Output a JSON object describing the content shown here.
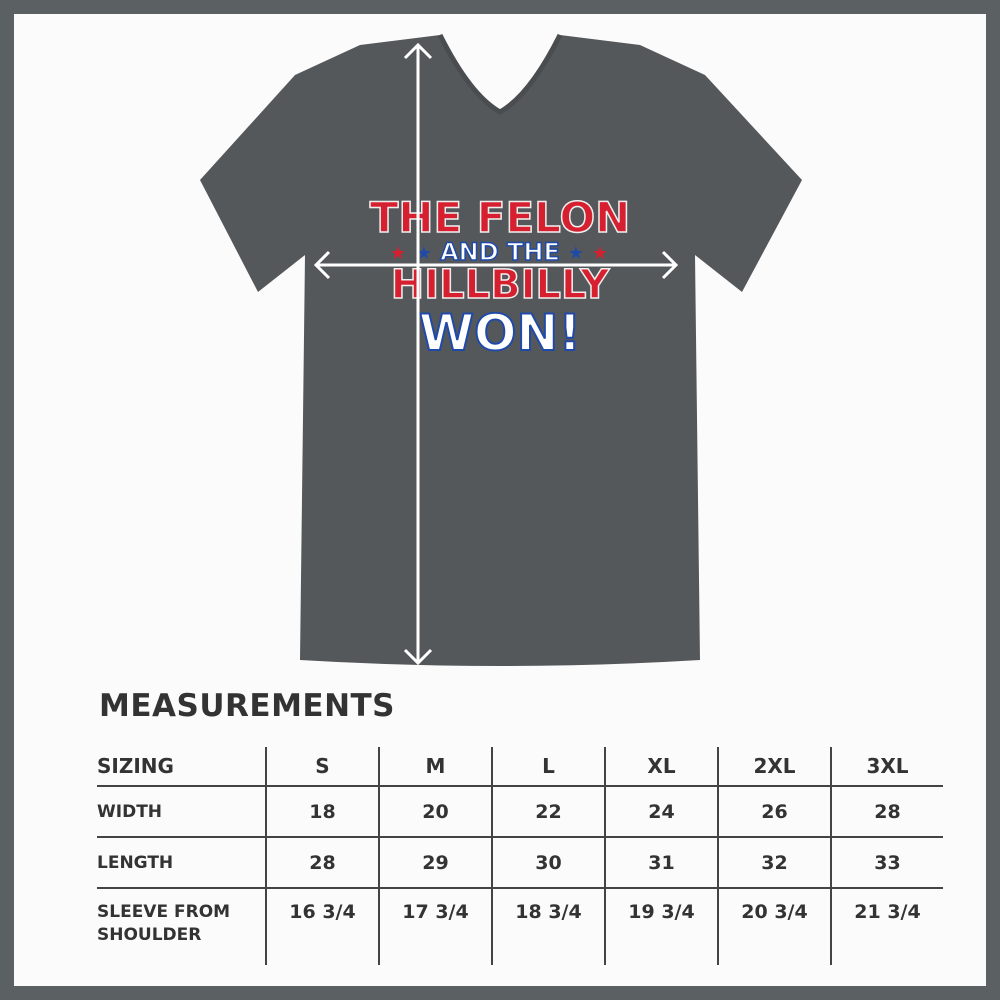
{
  "shirt": {
    "color": "#55585b",
    "print_lines": [
      "THE FELON",
      "AND THE",
      "HILLBILLY",
      "WON!"
    ],
    "print_colors": {
      "red": "#d6202f",
      "blue": "#1f4aa8",
      "white": "#ffffff"
    }
  },
  "measurements": {
    "title": "MEASUREMENTS",
    "header": {
      "label": "SIZING",
      "sizes": [
        "S",
        "M",
        "L",
        "XL",
        "2XL",
        "3XL"
      ]
    },
    "rows": [
      {
        "label": "WIDTH",
        "values": [
          "18",
          "20",
          "22",
          "24",
          "26",
          "28"
        ]
      },
      {
        "label": "LENGTH",
        "values": [
          "28",
          "29",
          "30",
          "31",
          "32",
          "33"
        ]
      },
      {
        "label_line1": "SLEEVE FROM",
        "label_line2": "SHOULDER",
        "values": [
          "16 3/4",
          "17 3/4",
          "18 3/4",
          "19 3/4",
          "20 3/4",
          "21 3/4"
        ]
      }
    ]
  }
}
